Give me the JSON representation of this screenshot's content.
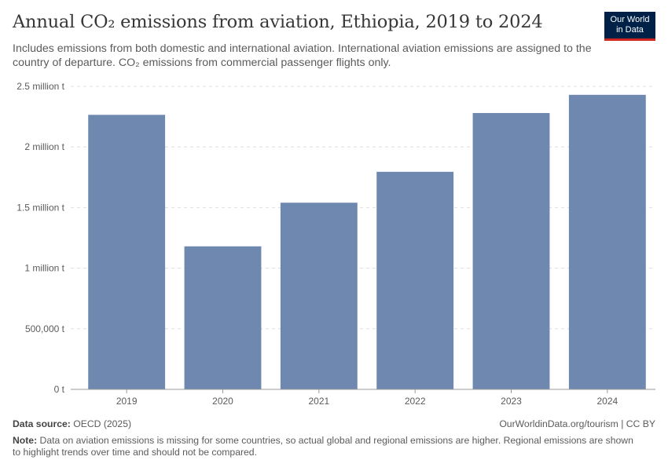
{
  "header": {
    "title": "Annual CO₂ emissions from aviation, Ethiopia, 2019 to 2024",
    "subtitle": "Includes emissions from both domestic and international aviation. International aviation emissions are assigned to the country of departure. CO₂ emissions from commercial passenger flights only."
  },
  "logo": {
    "line1": "Our World",
    "line2": "in Data"
  },
  "chart_data": {
    "type": "bar",
    "title": "Annual CO₂ emissions from aviation, Ethiopia, 2019 to 2024",
    "categories": [
      "2019",
      "2020",
      "2021",
      "2022",
      "2023",
      "2024"
    ],
    "values": [
      2265000,
      1180000,
      1540000,
      1795000,
      2280000,
      2430000
    ],
    "xlabel": "",
    "ylabel": "",
    "ylim": [
      0,
      2500000
    ],
    "yticks": [
      0,
      500000,
      1000000,
      1500000,
      2000000,
      2500000
    ],
    "ytick_labels": [
      "0 t",
      "500,000 t",
      "1 million t",
      "1.5 million t",
      "2 million t",
      "2.5 million t"
    ],
    "grid": true,
    "bar_color": "#6f88b0"
  },
  "footer": {
    "source_label": "Data source:",
    "source_text": "OECD (2025)",
    "credit": "OurWorldinData.org/tourism | CC BY",
    "note_label": "Note:",
    "note_text": "Data on aviation emissions is missing for some countries, so actual global and regional emissions are higher. Regional emissions are shown to highlight trends over time and should not be compared."
  }
}
